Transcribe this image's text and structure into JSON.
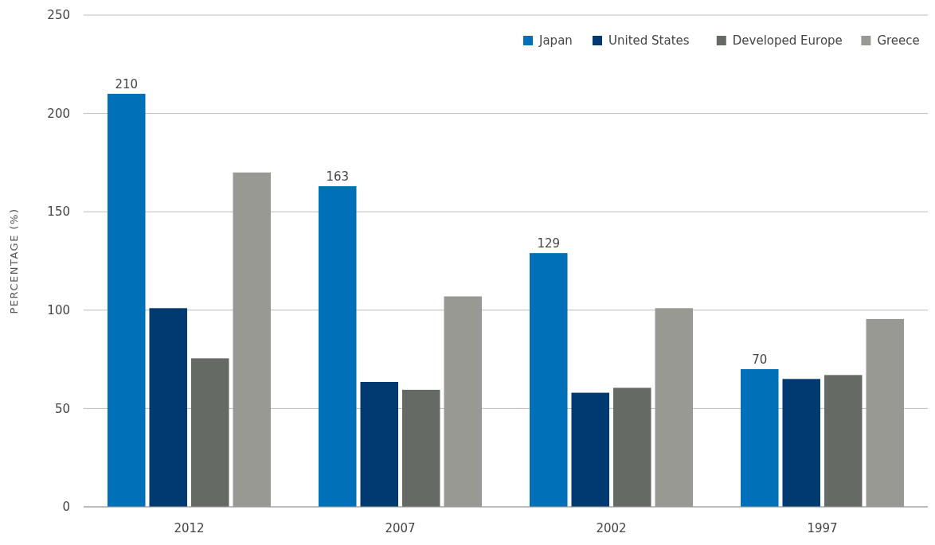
{
  "chart_data": {
    "type": "bar",
    "ylabel": "PERCENTAGE (%)",
    "categories": [
      "2012",
      "2007",
      "2002",
      "1997"
    ],
    "series": [
      {
        "name": "Japan",
        "color": "#0070b8",
        "values": [
          210,
          163,
          129,
          70
        ],
        "value_labels": [
          "210",
          "163",
          "129",
          "70"
        ]
      },
      {
        "name": "United States",
        "color": "#003a70",
        "values": [
          101,
          63.5,
          58,
          65
        ]
      },
      {
        "name": "Developed Europe",
        "color": "#656a64",
        "values": [
          75.5,
          59.5,
          60.5,
          67
        ]
      },
      {
        "name": "Greece",
        "color": "#989993",
        "values": [
          170,
          107,
          101,
          95.5
        ]
      }
    ],
    "ylim": [
      0,
      250
    ],
    "yticks": [
      0,
      50,
      100,
      150,
      200,
      250
    ],
    "grid": "y",
    "legend": "top right"
  }
}
